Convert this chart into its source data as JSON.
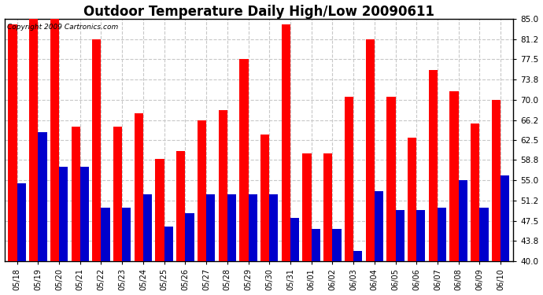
{
  "title": "Outdoor Temperature Daily High/Low 20090611",
  "copyright": "Copyright 2009 Cartronics.com",
  "ylim": [
    40.0,
    85.0
  ],
  "yticks": [
    40.0,
    43.8,
    47.5,
    51.2,
    55.0,
    58.8,
    62.5,
    66.2,
    70.0,
    73.8,
    77.5,
    81.2,
    85.0
  ],
  "dates": [
    "05/18",
    "05/19",
    "05/20",
    "05/21",
    "05/22",
    "05/23",
    "05/24",
    "05/25",
    "05/26",
    "05/27",
    "05/28",
    "05/29",
    "05/30",
    "05/31",
    "06/01",
    "06/02",
    "06/03",
    "06/04",
    "06/05",
    "06/06",
    "06/07",
    "06/08",
    "06/09",
    "06/10"
  ],
  "highs": [
    84.0,
    85.0,
    85.0,
    65.0,
    81.2,
    65.0,
    67.5,
    59.0,
    60.5,
    66.2,
    68.0,
    77.5,
    63.5,
    84.0,
    60.0,
    60.0,
    70.5,
    81.2,
    70.5,
    63.0,
    75.5,
    71.5,
    65.5,
    70.0
  ],
  "lows": [
    54.5,
    64.0,
    57.5,
    57.5,
    50.0,
    50.0,
    52.5,
    46.5,
    49.0,
    52.5,
    52.5,
    52.5,
    52.5,
    48.0,
    46.0,
    46.0,
    42.0,
    53.0,
    49.5,
    49.5,
    50.0,
    55.0,
    50.0,
    56.0
  ],
  "baseline": 40.0,
  "high_color": "#ff0000",
  "low_color": "#0000cc",
  "bg_color": "#ffffff",
  "grid_color": "#c8c8c8",
  "title_fontsize": 12,
  "bar_width": 0.42,
  "figwidth": 6.9,
  "figheight": 3.75,
  "dpi": 100
}
